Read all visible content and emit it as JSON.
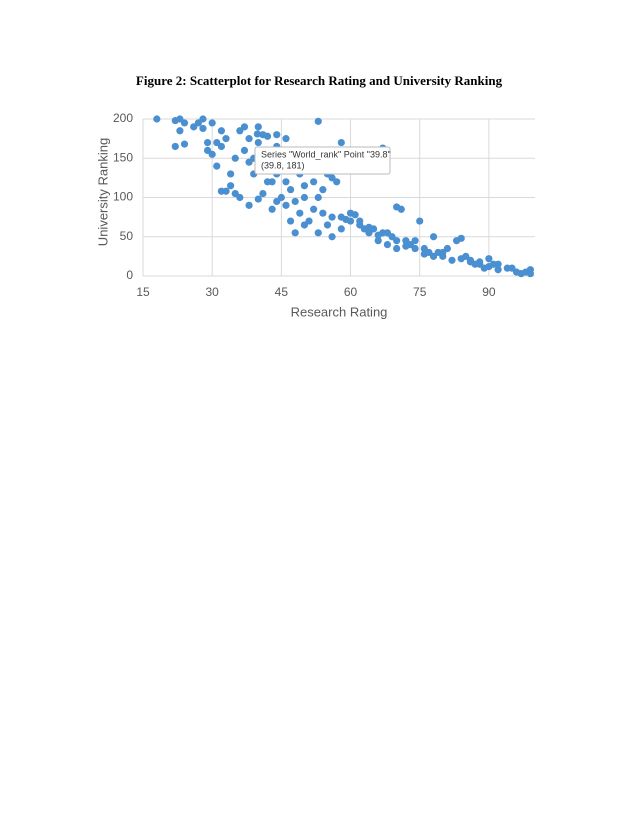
{
  "caption": "Figure 2: Scatterplot for Research Rating and University Ranking",
  "chart_data": {
    "type": "scatter",
    "x_label": "Research Rating",
    "y_label": "University Ranking",
    "tooltip": [
      "Series \"World_rank\" Point \"39.8\"",
      "(39.8, 181)"
    ],
    "color": "#4a8fd0",
    "grid": true,
    "xlim": [
      15,
      100
    ],
    "xticks": [
      15,
      30,
      45,
      60,
      75,
      90
    ],
    "ylim": [
      0,
      200
    ],
    "yticks": [
      0,
      50,
      100,
      150,
      200
    ],
    "x": [
      18,
      22,
      23,
      23,
      24,
      22,
      24,
      26,
      27,
      28,
      28,
      29,
      29,
      30,
      30,
      31,
      32,
      32,
      33,
      31,
      32,
      34,
      34,
      35,
      35,
      36,
      37,
      37,
      38,
      38,
      39,
      39,
      39.8,
      40,
      40,
      41,
      41,
      42,
      42,
      43,
      43,
      44,
      44,
      45,
      45,
      46,
      46,
      47,
      47,
      48,
      48,
      49,
      49,
      50,
      50,
      51,
      52,
      52,
      53,
      53,
      54,
      54,
      55,
      55,
      56,
      56,
      57,
      57,
      58,
      58,
      59,
      60,
      61,
      62,
      63,
      64,
      65,
      66,
      67,
      67,
      68,
      69,
      70,
      70,
      71,
      72,
      73,
      74,
      75,
      76,
      77,
      78,
      79,
      80,
      81,
      82,
      83,
      84,
      85,
      86,
      87,
      88,
      89,
      90,
      90,
      91,
      92,
      95,
      96,
      97,
      98,
      99,
      99,
      33,
      36,
      38,
      40,
      41,
      43,
      44,
      46,
      47,
      50,
      53,
      58,
      60,
      62,
      64,
      66,
      68,
      70,
      72,
      74,
      76,
      78,
      80,
      84,
      86,
      88,
      92,
      94,
      44,
      42,
      48,
      52,
      56,
      45
    ],
    "y": [
      200,
      198,
      200,
      185,
      195,
      165,
      168,
      190,
      195,
      200,
      188,
      170,
      160,
      195,
      155,
      170,
      165,
      185,
      175,
      140,
      108,
      115,
      130,
      150,
      105,
      185,
      190,
      160,
      145,
      175,
      150,
      130,
      181,
      190,
      170,
      180,
      160,
      178,
      140,
      150,
      120,
      180,
      130,
      160,
      100,
      175,
      120,
      150,
      110,
      95,
      55,
      130,
      80,
      100,
      115,
      70,
      120,
      85,
      197,
      100,
      110,
      80,
      65,
      130,
      75,
      50,
      140,
      120,
      170,
      75,
      72,
      80,
      78,
      65,
      60,
      55,
      60,
      45,
      163,
      55,
      40,
      50,
      35,
      88,
      85,
      45,
      40,
      35,
      70,
      35,
      30,
      50,
      30,
      25,
      35,
      20,
      45,
      48,
      25,
      20,
      15,
      18,
      10,
      22,
      12,
      15,
      8,
      10,
      5,
      3,
      5,
      8,
      3,
      108,
      100,
      90,
      98,
      105,
      85,
      95,
      90,
      70,
      65,
      55,
      60,
      70,
      70,
      62,
      52,
      55,
      45,
      38,
      45,
      28,
      25,
      30,
      22,
      18,
      15,
      15,
      10,
      165,
      120,
      140,
      150,
      125,
      135
    ]
  }
}
